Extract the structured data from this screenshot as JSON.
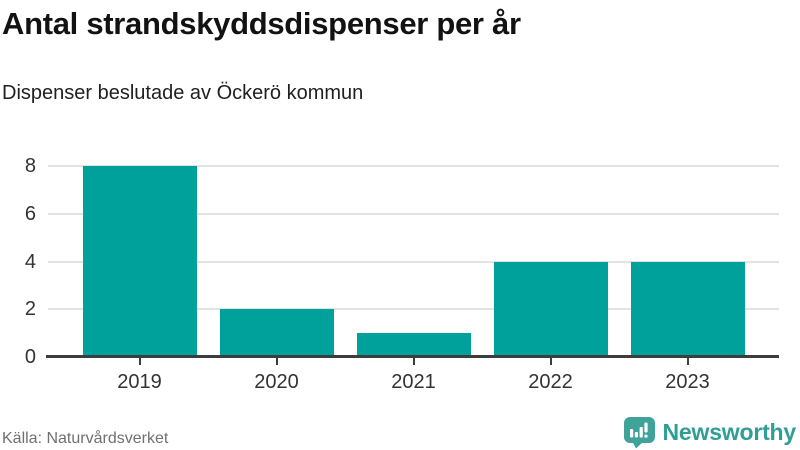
{
  "header": {
    "title": "Antal strandskyddsdispenser per år",
    "subtitle": "Dispenser beslutade av Öckerö kommun"
  },
  "chart_data": {
    "type": "bar",
    "categories": [
      "2019",
      "2020",
      "2021",
      "2022",
      "2023"
    ],
    "values": [
      8,
      2,
      1,
      4,
      4
    ],
    "title": "Antal strandskyddsdispenser per år",
    "subtitle": "Dispenser beslutade av Öckerö kommun",
    "xlabel": "",
    "ylabel": "",
    "ylim": [
      0,
      8
    ],
    "yticks": [
      0,
      2,
      4,
      6,
      8
    ],
    "grid": true,
    "legend": false,
    "bar_color": "#00a19a"
  },
  "footer": {
    "source": "Källa: Naturvårdsverket",
    "logo_text": "Newsworthy"
  },
  "colors": {
    "bar": "#00a19a",
    "grid": "#e3e3e3",
    "axis": "#3d3d3d",
    "logo": "#2f9e95",
    "logo_icon": "#3fa39a"
  }
}
